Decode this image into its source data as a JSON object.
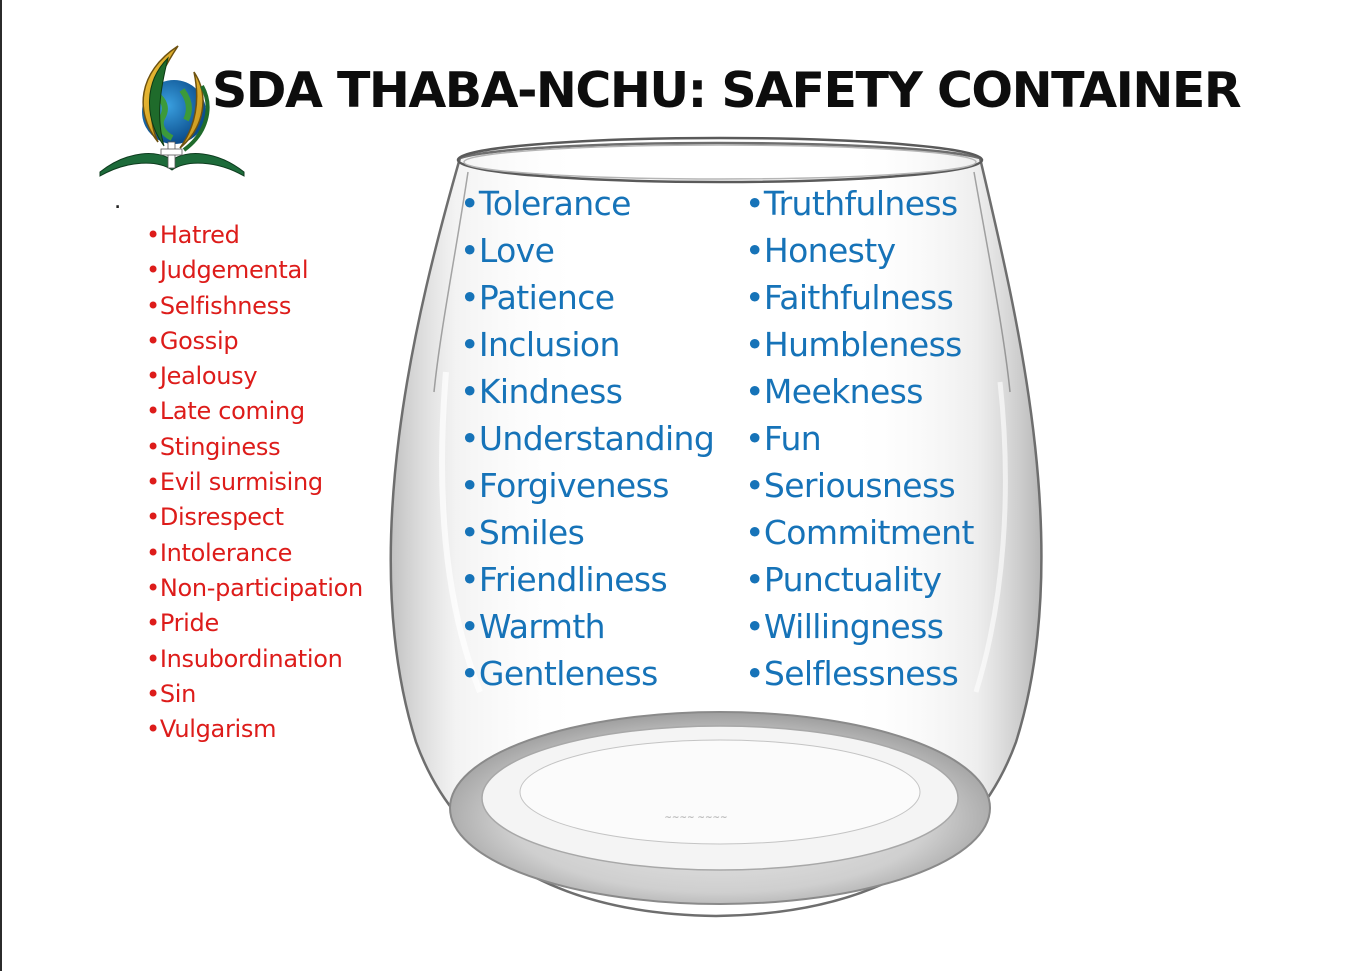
{
  "title": "SDA THABA-NCHU: SAFETY CONTAINER",
  "stray_mark": ".",
  "bullet": "•",
  "logo": {
    "icon": "sda-church-logo-icon"
  },
  "glass": {
    "icon": "wine-glass-icon"
  },
  "colors": {
    "negative": "#dd1c1a",
    "positive": "#1673b8",
    "title": "#0d0d0d"
  },
  "outside_list": [
    "Hatred",
    "Judgemental",
    "Selfishness",
    "Gossip",
    "Jealousy",
    "Late coming",
    "Stinginess",
    "Evil surmising",
    "Disrespect",
    "Intolerance",
    "Non-participation",
    "Pride",
    "Insubordination",
    "Sin",
    "Vulgarism"
  ],
  "inside_left": [
    "Tolerance",
    "Love",
    "Patience",
    "Inclusion",
    "Kindness",
    "Understanding",
    "Forgiveness",
    "Smiles",
    "Friendliness",
    "Warmth",
    "Gentleness"
  ],
  "inside_right": [
    "Truthfulness",
    "Honesty",
    "Faithfulness",
    "Humbleness",
    "Meekness",
    "Fun",
    "Seriousness",
    "Commitment",
    "Punctuality",
    "Willingness",
    "Selflessness"
  ]
}
